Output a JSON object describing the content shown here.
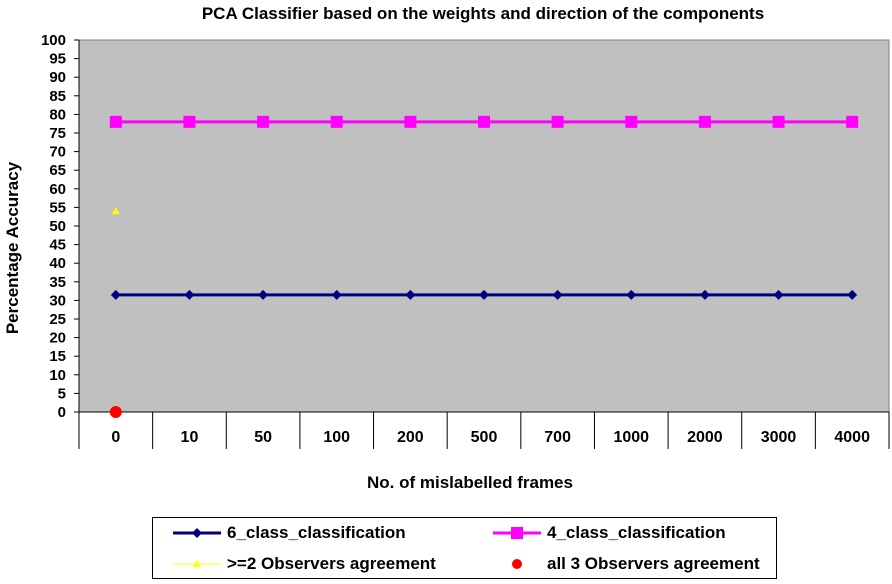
{
  "chart_data": {
    "type": "line",
    "title": "PCA Classifier based on the weights and direction of the components",
    "xlabel": "No. of mislabelled frames",
    "ylabel": "Percentage Accuracy",
    "categories": [
      "0",
      "10",
      "50",
      "100",
      "200",
      "500",
      "700",
      "1000",
      "2000",
      "3000",
      "4000"
    ],
    "ylim": [
      0,
      100
    ],
    "yticks": [
      "0",
      "5",
      "10",
      "15",
      "20",
      "25",
      "30",
      "35",
      "40",
      "45",
      "50",
      "55",
      "60",
      "65",
      "70",
      "75",
      "80",
      "85",
      "90",
      "95",
      "100"
    ],
    "grid": false,
    "legend_position": "bottom",
    "plot_background": "#C0C0C0",
    "series": [
      {
        "name": "6_class_classification",
        "color": "#000080",
        "marker": "diamond",
        "values": [
          31.5,
          31.5,
          31.5,
          31.5,
          31.5,
          31.5,
          31.5,
          31.5,
          31.5,
          31.5,
          31.5
        ]
      },
      {
        "name": "4_class_classification",
        "color": "#FF00FF",
        "marker": "square",
        "values": [
          78,
          78,
          78,
          78,
          78,
          78,
          78,
          78,
          78,
          78,
          78
        ]
      },
      {
        "name": ">=2 Observers agreement",
        "color": "#FFFF00",
        "marker": "triangle",
        "values": [
          54,
          null,
          null,
          null,
          null,
          null,
          null,
          null,
          null,
          null,
          null
        ]
      },
      {
        "name": "all 3 Observers agreement",
        "color": "#FF0000",
        "marker": "circle",
        "values": [
          0,
          null,
          null,
          null,
          null,
          null,
          null,
          null,
          null,
          null,
          null
        ]
      }
    ]
  }
}
